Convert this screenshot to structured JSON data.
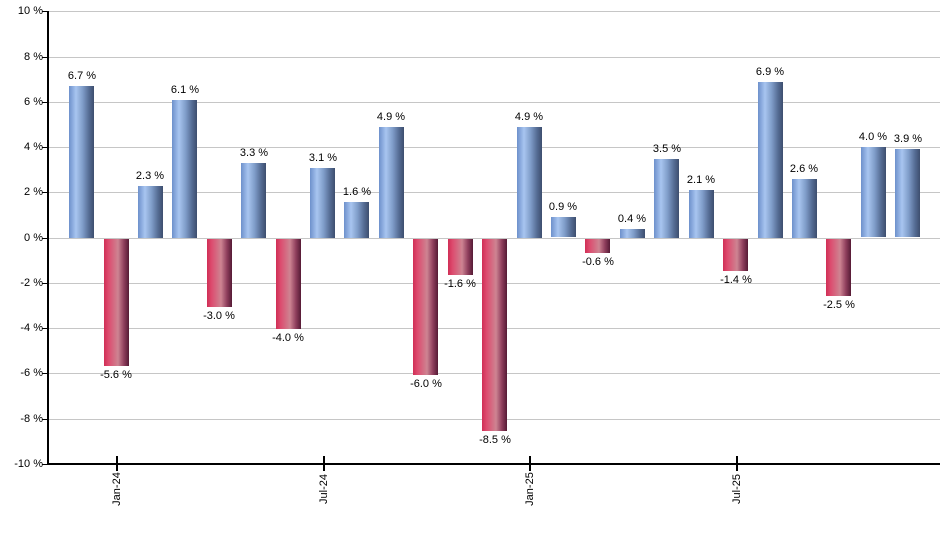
{
  "chart_data": {
    "type": "bar",
    "title": "",
    "xlabel": "",
    "ylabel": "",
    "unit": "%",
    "values": [
      6.7,
      -5.6,
      2.3,
      6.1,
      -3.0,
      3.3,
      -4.0,
      3.1,
      1.6,
      4.9,
      -6.0,
      -1.6,
      -8.5,
      4.9,
      0.9,
      -0.6,
      0.4,
      3.5,
      2.1,
      -1.4,
      6.9,
      2.6,
      -2.5,
      4.0,
      3.9
    ],
    "bar_labels": [
      "6.7 %",
      "-5.6 %",
      "2.3 %",
      "6.1 %",
      "-3.0 %",
      "3.3 %",
      "-4.0 %",
      "3.1 %",
      "1.6 %",
      "4.9 %",
      "-6.0 %",
      "-1.6 %",
      "-8.5 %",
      "4.9 %",
      "0.9 %",
      "-0.6 %",
      "0.4 %",
      "3.5 %",
      "2.1 %",
      "-1.4 %",
      "6.9 %",
      "2.6 %",
      "-2.5 %",
      "4.0 %",
      "3.9 %"
    ],
    "x_ticks": [
      {
        "bar_index": 1,
        "label": "Jan-24"
      },
      {
        "bar_index": 7,
        "label": "Jul-24"
      },
      {
        "bar_index": 13,
        "label": "Jan-25"
      },
      {
        "bar_index": 19,
        "label": "Jul-25"
      }
    ],
    "y_ticks": [
      {
        "value": 10,
        "label": "10 %"
      },
      {
        "value": 8,
        "label": "8 %"
      },
      {
        "value": 6,
        "label": "6 %"
      },
      {
        "value": 4,
        "label": "4 %"
      },
      {
        "value": 2,
        "label": "2 %"
      },
      {
        "value": 0,
        "label": "0 %"
      },
      {
        "value": -2,
        "label": "-2 %"
      },
      {
        "value": -4,
        "label": "-4 %"
      },
      {
        "value": -6,
        "label": "-6 %"
      },
      {
        "value": -8,
        "label": "-8 %"
      },
      {
        "value": -10,
        "label": "-10 %"
      }
    ],
    "ylim": [
      -10,
      10
    ],
    "grid": true,
    "legend": null,
    "background_color": "#ffffff",
    "axis_color": "#000000",
    "gridline_color": "#c6c6c6",
    "label_color": "#000000",
    "positive_gradient": [
      {
        "color": "#6d90cb",
        "pos": 0
      },
      {
        "color": "#a8c5f0",
        "pos": 28
      },
      {
        "color": "#7f9cc8",
        "pos": 55
      },
      {
        "color": "#556c94",
        "pos": 80
      },
      {
        "color": "#3d4e6e",
        "pos": 100
      }
    ],
    "negative_gradient": [
      {
        "color": "#d02e55",
        "pos": 0
      },
      {
        "color": "#dd4b6e",
        "pos": 18
      },
      {
        "color": "#cd8492",
        "pos": 56
      },
      {
        "color": "#8e3d5c",
        "pos": 80
      },
      {
        "color": "#551b35",
        "pos": 100
      }
    ]
  }
}
